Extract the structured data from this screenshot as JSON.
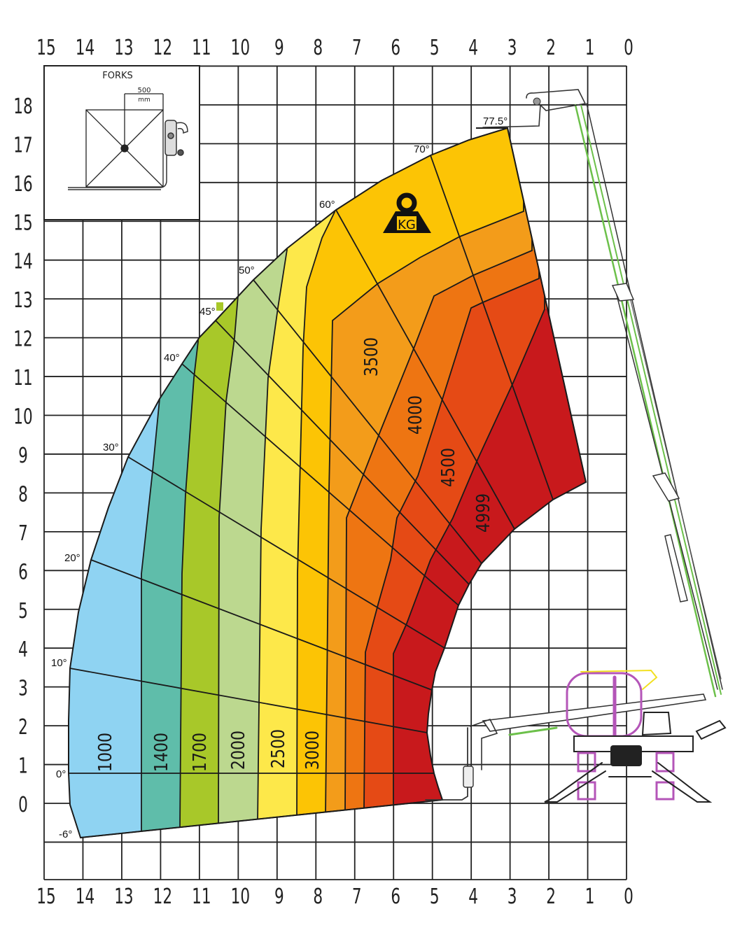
{
  "x_axis": {
    "ticks": [
      "15",
      "14",
      "13",
      "12",
      "11",
      "10",
      "9",
      "8",
      "7",
      "6",
      "5",
      "4",
      "3",
      "2",
      "1",
      "0"
    ]
  },
  "y_axis": {
    "ticks": [
      "18",
      "17",
      "16",
      "15",
      "14",
      "13",
      "12",
      "11",
      "10",
      "9",
      "8",
      "7",
      "6",
      "5",
      "4",
      "3",
      "2",
      "1",
      "0"
    ]
  },
  "load_zones": [
    {
      "capacity": "1000",
      "color": "#8fd3f2"
    },
    {
      "capacity": "1400",
      "color": "#5fbdaa"
    },
    {
      "capacity": "1700",
      "color": "#a8c829"
    },
    {
      "capacity": "2000",
      "color": "#bcd88f"
    },
    {
      "capacity": "2500",
      "color": "#fde84a"
    },
    {
      "capacity": "3000",
      "color": "#fcc405"
    },
    {
      "capacity": "3500",
      "color": "#f39c1a"
    },
    {
      "capacity": "4000",
      "color": "#ee7512"
    },
    {
      "capacity": "4500",
      "color": "#e54a15"
    },
    {
      "capacity": "4999",
      "color": "#c8191c"
    }
  ],
  "boom_angles": [
    "-6°",
    "0°",
    "10°",
    "20°",
    "30°",
    "40°",
    "45°",
    "50°",
    "60°",
    "70°",
    "77.5°"
  ],
  "forks_inset": {
    "title": "FORKS",
    "dimension_value": "500",
    "dimension_unit": "mm"
  },
  "weight_icon": {
    "label": "KG",
    "icon": "weight-kg-icon"
  },
  "colors": {
    "grid": "#222222",
    "boom_green": "#6cc04a",
    "cabin": "#b455b8"
  }
}
